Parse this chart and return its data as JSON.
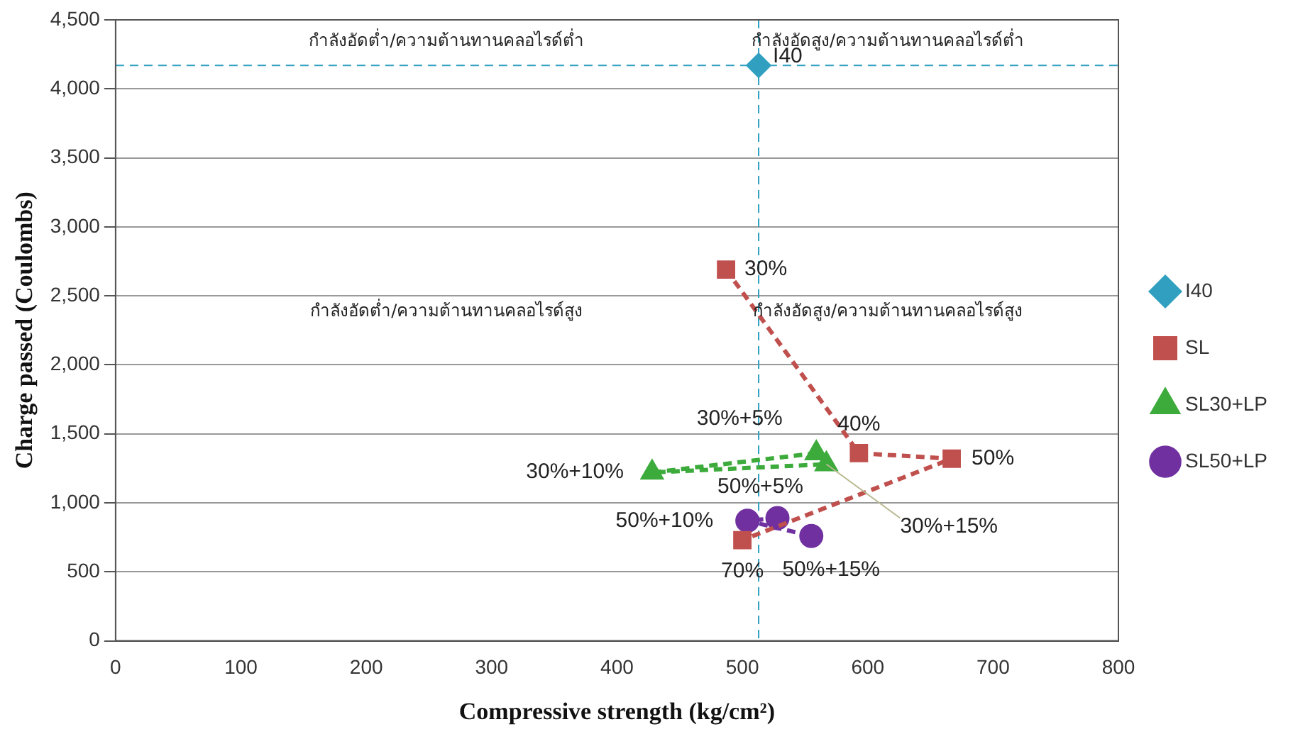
{
  "chart_data": {
    "type": "scatter",
    "xlabel": "Compressive strength (kg/cm²)",
    "ylabel": "Charge passed (Coulombs)",
    "xlim": [
      0,
      800
    ],
    "xticks": [
      0,
      100,
      200,
      300,
      400,
      500,
      600,
      700,
      800
    ],
    "ylim": [
      0,
      4500
    ],
    "yticks": [
      {
        "value": 0,
        "label": "0"
      },
      {
        "value": 500,
        "label": "500"
      },
      {
        "value": 1000,
        "label": "1,000"
      },
      {
        "value": 1500,
        "label": "1,500"
      },
      {
        "value": 2000,
        "label": "2,000"
      },
      {
        "value": 2500,
        "label": "2,500"
      },
      {
        "value": 3000,
        "label": "3,000"
      },
      {
        "value": 3500,
        "label": "3,500"
      },
      {
        "value": 4000,
        "label": "4,000"
      },
      {
        "value": 4500,
        "label": "4,500"
      }
    ],
    "grid": "y",
    "legend": "right",
    "line_style": "dashed",
    "series": [
      {
        "name": "I40",
        "color": "#31a0c0",
        "marker": "diamond",
        "x": [
          513
        ],
        "values": [
          4170
        ]
      },
      {
        "name": "SL",
        "color": "#c0504d",
        "marker": "square",
        "x": [
          487,
          593,
          667,
          500
        ],
        "values": [
          2690,
          1360,
          1320,
          730
        ]
      },
      {
        "name": "SL30+LP",
        "color": "#3cab3c",
        "marker": "triangle",
        "x": [
          559,
          428,
          567
        ],
        "values": [
          1360,
          1220,
          1280
        ]
      },
      {
        "name": "SL50+LP",
        "color": "#7030a0",
        "marker": "circle",
        "x": [
          528,
          504,
          555
        ],
        "values": [
          890,
          870,
          760
        ]
      }
    ],
    "ref_lines": [
      {
        "axis": "y",
        "value": 4170,
        "color": "#31a0c0",
        "line_style": "dashed"
      },
      {
        "axis": "x",
        "value": 513,
        "color": "#31a0c0",
        "line_style": "dashed"
      }
    ],
    "annotations": [
      "กำลังอัดต่ำ/ความต้านทานคลอไรด์ต่ำ",
      "กำลังอัดสูง/ความต้านทานคลอไรด์ต่ำ",
      "กำลังอัดต่ำ/ความต้านทานคลอไรด์สูง",
      "กำลังอัดสูง/ความต้านทานคลอไรด์สูง",
      {
        "text": "I40",
        "x": 513,
        "y": 4170
      },
      {
        "text": "30%",
        "x": 487,
        "y": 2690
      },
      {
        "text": "40%",
        "x": 593,
        "y": 1360
      },
      {
        "text": "50%",
        "x": 667,
        "y": 1320
      },
      {
        "text": "70%",
        "x": 500,
        "y": 730
      },
      {
        "text": "30%+5%",
        "x": 559,
        "y": 1360
      },
      {
        "text": "30%+10%",
        "x": 428,
        "y": 1220
      },
      {
        "text": "30%+15%",
        "x": 567,
        "y": 1280
      },
      {
        "text": "50%+5%",
        "x": 528,
        "y": 890
      },
      {
        "text": "50%+10%",
        "x": 504,
        "y": 870
      },
      {
        "text": "50%+15%",
        "x": 555,
        "y": 760
      }
    ]
  }
}
